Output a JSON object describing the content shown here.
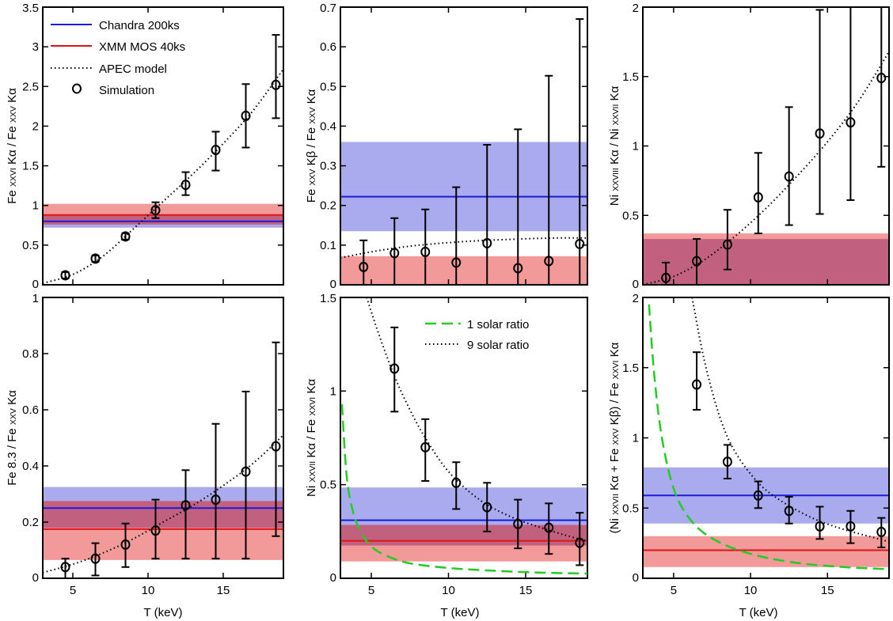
{
  "colors": {
    "chandra": "#1a1adc",
    "xmm": "#e01414",
    "chandra_band": "#aaaaee",
    "xmm_band": "#f29a9a",
    "overlap": "#c2617f",
    "solar1": "#22cc22",
    "model": "#000000"
  },
  "legend_panel1": {
    "chandra": "Chandra 200ks",
    "xmm": "XMM MOS 40ks",
    "apec": "APEC model",
    "sim": "Simulation"
  },
  "legend_panel5": {
    "solar1": "1 solar ratio",
    "solar9": "9 solar ratio"
  },
  "xlabel": "T (keV)",
  "chart_data": [
    {
      "type": "scatter",
      "panel": 1,
      "ylabel_parts": [
        [
          "Fe ",
          "n"
        ],
        [
          "XXVI",
          "s"
        ],
        [
          "  Kα / Fe ",
          "n"
        ],
        [
          "XXV",
          "s"
        ],
        [
          "  Kα",
          "n"
        ]
      ],
      "xlim": [
        3,
        19
      ],
      "ylim": [
        0,
        3.5
      ],
      "yticks": [
        0,
        0.5,
        1,
        1.5,
        2,
        2.5,
        3,
        3.5
      ],
      "ytick_labels": [
        "0",
        "0.5",
        "1",
        "1.5",
        "2",
        "2.5",
        "3",
        "3.5"
      ],
      "xticks": [
        5,
        10,
        15
      ],
      "xtick_labels": [],
      "chandra": {
        "value": 0.8,
        "band": [
          0.72,
          0.88
        ]
      },
      "xmm": {
        "value": 0.88,
        "band": [
          0.76,
          1.02
        ]
      },
      "simulation": {
        "x": [
          4.5,
          6.5,
          8.5,
          10.5,
          12.5,
          14.5,
          16.5,
          18.5
        ],
        "y": [
          0.12,
          0.33,
          0.61,
          0.94,
          1.26,
          1.7,
          2.13,
          2.52
        ],
        "err_low": [
          0.04,
          0.04,
          0.04,
          0.1,
          0.13,
          0.26,
          0.4,
          0.42
        ],
        "err_high": [
          0.04,
          0.04,
          0.04,
          0.1,
          0.16,
          0.23,
          0.4,
          0.63
        ]
      },
      "model_curve": {
        "x": [
          3,
          5,
          7,
          9,
          11,
          13,
          15,
          17,
          19
        ],
        "y": [
          0.02,
          0.13,
          0.36,
          0.7,
          1.05,
          1.4,
          1.78,
          2.2,
          2.72
        ]
      }
    },
    {
      "type": "scatter",
      "panel": 2,
      "ylabel_parts": [
        [
          "Fe ",
          "n"
        ],
        [
          "XXV",
          "s"
        ],
        [
          "  Kβ / Fe ",
          "n"
        ],
        [
          "XXV",
          "s"
        ],
        [
          "  Kα",
          "n"
        ]
      ],
      "xlim": [
        3,
        19
      ],
      "ylim": [
        0,
        0.7
      ],
      "yticks": [
        0,
        0.1,
        0.2,
        0.3,
        0.4,
        0.5,
        0.6,
        0.7
      ],
      "ytick_labels": [
        "0",
        "0.1",
        "0.2",
        "0.3",
        "0.4",
        "0.5",
        "0.6",
        "0.7"
      ],
      "xticks": [
        5,
        10,
        15
      ],
      "xtick_labels": [],
      "chandra": {
        "value": 0.222,
        "band": [
          0.135,
          0.36
        ]
      },
      "xmm": {
        "value": null,
        "band": [
          0,
          0.072
        ]
      },
      "simulation": {
        "x": [
          4.5,
          6.5,
          8.5,
          10.5,
          12.5,
          14.5,
          16.5,
          18.5
        ],
        "y": [
          0.045,
          0.08,
          0.083,
          0.056,
          0.105,
          0.042,
          0.06,
          0.103
        ],
        "err_low": [
          0.045,
          0.08,
          0.083,
          0.056,
          0.105,
          0.042,
          0.06,
          0.103
        ],
        "err_high": [
          0.067,
          0.088,
          0.107,
          0.19,
          0.248,
          0.35,
          0.467,
          0.567
        ]
      },
      "model_curve": {
        "x": [
          3,
          5,
          7,
          9,
          11,
          13,
          15,
          17,
          19
        ],
        "y": [
          0.068,
          0.083,
          0.095,
          0.103,
          0.109,
          0.113,
          0.116,
          0.118,
          0.118
        ]
      }
    },
    {
      "type": "scatter",
      "panel": 3,
      "ylabel_parts": [
        [
          "Ni ",
          "n"
        ],
        [
          "XXVIII",
          "s"
        ],
        [
          "  Kα / Ni ",
          "n"
        ],
        [
          "XXVII",
          "s"
        ],
        [
          "  Kα",
          "n"
        ]
      ],
      "xlim": [
        3,
        19
      ],
      "ylim": [
        0,
        2
      ],
      "yticks": [
        0,
        0.5,
        1,
        1.5,
        2
      ],
      "ytick_labels": [
        "0",
        "0.5",
        "1",
        "1.5",
        "2"
      ],
      "xticks": [
        5,
        10,
        15
      ],
      "xtick_labels": [],
      "chandra": {
        "value": null,
        "band": [
          0,
          0.33
        ]
      },
      "xmm": {
        "value": null,
        "band": [
          0,
          0.37
        ]
      },
      "simulation": {
        "x": [
          4.5,
          6.5,
          8.5,
          10.5,
          12.5,
          14.5,
          16.5,
          18.5
        ],
        "y": [
          0.05,
          0.17,
          0.29,
          0.63,
          0.78,
          1.09,
          1.17,
          1.49
        ],
        "err_low": [
          0.05,
          0.17,
          0.18,
          0.26,
          0.35,
          0.58,
          0.56,
          0.64
        ],
        "err_high": [
          0.11,
          0.16,
          0.25,
          0.32,
          0.5,
          0.89,
          0.83,
          0.51
        ]
      },
      "model_curve": {
        "x": [
          3,
          5,
          7,
          9,
          11,
          13,
          15,
          17,
          19
        ],
        "y": [
          0.0,
          0.06,
          0.18,
          0.35,
          0.55,
          0.78,
          1.03,
          1.32,
          1.68
        ]
      }
    },
    {
      "type": "scatter",
      "panel": 4,
      "ylabel_parts": [
        [
          "Fe 8.3 / Fe ",
          "n"
        ],
        [
          "XXV",
          "s"
        ],
        [
          "  Kα",
          "n"
        ]
      ],
      "xlim": [
        3,
        19
      ],
      "ylim": [
        0,
        1
      ],
      "yticks": [
        0,
        0.2,
        0.4,
        0.6,
        0.8,
        1
      ],
      "ytick_labels": [
        "0",
        "0.2",
        "0.4",
        "0.6",
        "0.8",
        "1"
      ],
      "xticks": [
        5,
        10,
        15
      ],
      "xtick_labels": [
        "5",
        "10",
        "15"
      ],
      "chandra": {
        "value": 0.25,
        "band": [
          0.18,
          0.325
        ]
      },
      "xmm": {
        "value": 0.175,
        "band": [
          0.065,
          0.275
        ]
      },
      "simulation": {
        "x": [
          4.5,
          6.5,
          8.5,
          10.5,
          12.5,
          14.5,
          16.5,
          18.5
        ],
        "y": [
          0.04,
          0.07,
          0.12,
          0.17,
          0.26,
          0.28,
          0.38,
          0.47
        ],
        "err_low": [
          0.04,
          0.06,
          0.08,
          0.1,
          0.19,
          0.21,
          0.31,
          0.32
        ],
        "err_high": [
          0.03,
          0.055,
          0.075,
          0.11,
          0.125,
          0.27,
          0.285,
          0.37
        ]
      },
      "model_curve": {
        "x": [
          3,
          5,
          7,
          9,
          11,
          13,
          15,
          17,
          19
        ],
        "y": [
          0.02,
          0.05,
          0.09,
          0.14,
          0.2,
          0.26,
          0.33,
          0.41,
          0.51
        ]
      }
    },
    {
      "type": "scatter",
      "panel": 5,
      "ylabel_parts": [
        [
          "Ni ",
          "n"
        ],
        [
          "XXVII",
          "s"
        ],
        [
          "  Kα / Fe ",
          "n"
        ],
        [
          "XXVI",
          "s"
        ],
        [
          "  Kα",
          "n"
        ]
      ],
      "xlim": [
        3,
        19
      ],
      "ylim": [
        0,
        1.5
      ],
      "yticks": [
        0,
        0.5,
        1,
        1.5
      ],
      "ytick_labels": [
        "0",
        "0.5",
        "1",
        "1.5"
      ],
      "xticks": [
        5,
        10,
        15
      ],
      "xtick_labels": [
        "5",
        "10",
        "15"
      ],
      "chandra": {
        "value": 0.31,
        "band": [
          0.175,
          0.485
        ]
      },
      "xmm": {
        "value": 0.2,
        "band": [
          0.09,
          0.285
        ]
      },
      "simulation": {
        "x": [
          6.5,
          8.5,
          10.5,
          12.5,
          14.5,
          16.5,
          18.5
        ],
        "y": [
          1.12,
          0.7,
          0.51,
          0.38,
          0.29,
          0.27,
          0.19
        ],
        "err_low": [
          0.23,
          0.18,
          0.14,
          0.13,
          0.13,
          0.14,
          0.12
        ],
        "err_high": [
          0.22,
          0.15,
          0.11,
          0.13,
          0.13,
          0.13,
          0.16
        ]
      },
      "model_curve": {
        "x": [
          4.7,
          5.5,
          6.5,
          7.5,
          8.5,
          10,
          12,
          14,
          16,
          18,
          19
        ],
        "y": [
          1.5,
          1.3,
          1.08,
          0.9,
          0.75,
          0.57,
          0.42,
          0.33,
          0.27,
          0.22,
          0.2
        ]
      },
      "solar1_curve": {
        "x": [
          3.1,
          3.4,
          3.8,
          4.3,
          5,
          6,
          7.5,
          10,
          13,
          16,
          19
        ],
        "y": [
          0.93,
          0.55,
          0.36,
          0.25,
          0.17,
          0.12,
          0.08,
          0.055,
          0.04,
          0.03,
          0.025
        ]
      }
    },
    {
      "type": "scatter",
      "panel": 6,
      "ylabel_parts": [
        [
          "(Ni ",
          "n"
        ],
        [
          "XXVII",
          "s"
        ],
        [
          "  Kα + Fe ",
          "n"
        ],
        [
          "XXV",
          "s"
        ],
        [
          "  Kβ) / Fe ",
          "n"
        ],
        [
          "XXVI",
          "s"
        ],
        [
          "  Kα",
          "n"
        ]
      ],
      "xlim": [
        3,
        19
      ],
      "ylim": [
        0,
        2
      ],
      "yticks": [
        0,
        0.5,
        1,
        1.5,
        2
      ],
      "ytick_labels": [
        "0",
        "0.5",
        "1",
        "1.5",
        "2"
      ],
      "xticks": [
        5,
        10,
        15
      ],
      "xtick_labels": [
        "5",
        "10",
        "15"
      ],
      "chandra": {
        "value": 0.59,
        "band": [
          0.39,
          0.79
        ]
      },
      "xmm": {
        "value": 0.2,
        "band": [
          0.08,
          0.3
        ]
      },
      "simulation": {
        "x": [
          6.5,
          8.5,
          10.5,
          12.5,
          14.5,
          16.5,
          18.5
        ],
        "y": [
          1.38,
          0.83,
          0.59,
          0.48,
          0.37,
          0.37,
          0.33
        ],
        "err_low": [
          0.18,
          0.12,
          0.09,
          0.09,
          0.09,
          0.12,
          0.11
        ],
        "err_high": [
          0.23,
          0.12,
          0.1,
          0.1,
          0.14,
          0.11,
          0.1
        ]
      },
      "model_curve": {
        "x": [
          6.2,
          7,
          8,
          9,
          10.5,
          12,
          14,
          16,
          18,
          19
        ],
        "y": [
          2.0,
          1.55,
          1.15,
          0.9,
          0.68,
          0.55,
          0.43,
          0.35,
          0.29,
          0.26
        ]
      },
      "solar1_curve": {
        "x": [
          3.4,
          3.7,
          4.1,
          4.6,
          5.2,
          6,
          7,
          8.5,
          10.5,
          13,
          16,
          19
        ],
        "y": [
          1.95,
          1.5,
          1.1,
          0.8,
          0.58,
          0.43,
          0.32,
          0.23,
          0.16,
          0.11,
          0.08,
          0.065
        ]
      }
    }
  ]
}
